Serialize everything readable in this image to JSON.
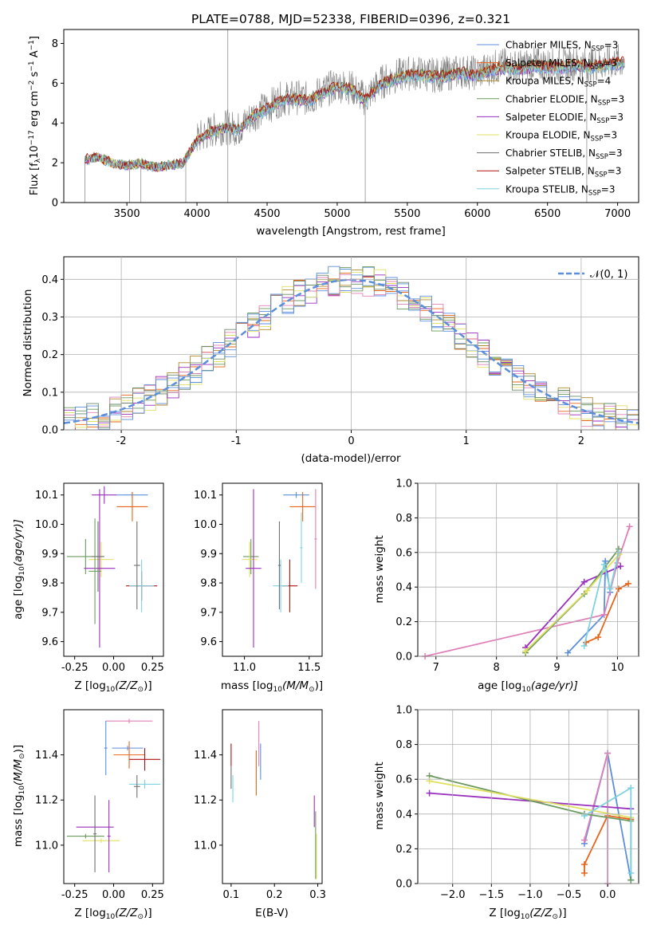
{
  "figure": {
    "title": "PLATE=0788, MJD=52338, FIBERID=0396, z=0.321"
  },
  "palette": {
    "series_colors": [
      "#5b8fdc",
      "#e8641a",
      "#b08a2e",
      "#6c9a5e",
      "#9a2fbe",
      "#e0e060",
      "#707070",
      "#b01010",
      "#7fd3e0"
    ],
    "extra_colors": [
      "#e080b8",
      "#6a8a6a"
    ],
    "normal_curve": "#5b8fdc",
    "spectrum": "#808080",
    "grid": "#b0b0b0"
  },
  "chart_data": [
    {
      "panel": "spectrum",
      "type": "line",
      "title": "PLATE=0788, MJD=52338, FIBERID=0396, z=0.321",
      "xlabel": "wavelength [Angstrom, rest frame]",
      "ylabel": "Flux [f",
      "ylabel_sub": "λ",
      "ylabel_rest": "10",
      "ylabel_exp1": "−17",
      "ylabel_mid": " erg cm",
      "ylabel_exp2": "−2",
      "ylabel_mid2": " s",
      "ylabel_exp3": "−1",
      "ylabel_mid3": " A",
      "ylabel_exp4": "−1",
      "ylabel_end": "]",
      "xlim": [
        3050,
        7150
      ],
      "ylim": [
        0,
        8.7
      ],
      "xticks": [
        3500,
        4000,
        4500,
        5000,
        5500,
        6000,
        6500,
        7000
      ],
      "yticks": [
        0,
        2,
        4,
        6,
        8
      ],
      "grid": false,
      "legend_position": "top-right",
      "legend": [
        {
          "name": "Chabrier MILES, N",
          "sub": "SSP",
          "suffix": "=3"
        },
        {
          "name": "Salpeter MILES, N",
          "sub": "SSP",
          "suffix": "=3"
        },
        {
          "name": "Kroupa MILES, N",
          "sub": "SSP",
          "suffix": "=4"
        },
        {
          "name": "Chabrier ELODIE, N",
          "sub": "SSP",
          "suffix": "=3"
        },
        {
          "name": "Salpeter ELODIE, N",
          "sub": "SSP",
          "suffix": "=3"
        },
        {
          "name": "Kroupa ELODIE, N",
          "sub": "SSP",
          "suffix": "=3"
        },
        {
          "name": "Chabrier STELIB, N",
          "sub": "SSP",
          "suffix": "=3"
        },
        {
          "name": "Salpeter STELIB, N",
          "sub": "SSP",
          "suffix": "=3"
        },
        {
          "name": "Kroupa STELIB, N",
          "sub": "SSP",
          "suffix": "=3"
        }
      ],
      "continuum": {
        "x": [
          3200,
          3300,
          3400,
          3500,
          3600,
          3700,
          3800,
          3900,
          3950,
          4000,
          4100,
          4200,
          4300,
          4400,
          4500,
          4600,
          4700,
          4800,
          4900,
          5000,
          5100,
          5200,
          5300,
          5400,
          5500,
          5600,
          5700,
          5800,
          5900,
          6000,
          6100,
          6200,
          6300,
          6400,
          6500,
          6600,
          6700,
          6800,
          6900,
          7000,
          7050
        ],
        "y": [
          2.2,
          2.3,
          2.0,
          1.9,
          2.0,
          1.8,
          1.9,
          2.0,
          2.6,
          3.2,
          3.6,
          3.8,
          3.7,
          4.4,
          4.8,
          5.2,
          5.3,
          5.2,
          5.6,
          5.9,
          5.8,
          5.2,
          6.0,
          6.3,
          6.5,
          6.5,
          6.4,
          6.5,
          6.6,
          6.5,
          6.8,
          6.9,
          6.8,
          7.0,
          6.9,
          6.9,
          7.0,
          6.9,
          7.0,
          7.1,
          7.1
        ]
      },
      "data_start": 3200,
      "data_end": 7050
    },
    {
      "panel": "residuals",
      "type": "line",
      "xlabel": "(data-model)/error",
      "ylabel": "Normed distribution",
      "xlim": [
        -2.5,
        2.5
      ],
      "ylim": [
        0,
        0.46
      ],
      "xticks": [
        -2,
        -1,
        0,
        1,
        2
      ],
      "yticks": [
        0.0,
        0.1,
        0.2,
        0.3,
        0.4
      ],
      "grid": true,
      "legend_position": "top-right",
      "legend": [
        "𝒩(0, 1)"
      ],
      "normal": {
        "mean": 0,
        "sigma": 1
      },
      "hist_bin_width": 0.1,
      "hist_start": -2.5
    },
    {
      "panel": "age_vs_Z",
      "type": "scatter",
      "xlabel": "Z [log",
      "xlabel_sub": "10",
      "xlabel_rest": "(Z/Z",
      "xlabel_sub2": "⊙",
      "xlabel_end": ")]",
      "ylabel": "age  [log",
      "ylabel_sub": "10",
      "ylabel_rest": "(age/yr)]",
      "xlim": [
        -0.32,
        0.32
      ],
      "ylim": [
        9.55,
        10.14
      ],
      "xticks": [
        "-0.25",
        "0.00",
        "0.25"
      ],
      "xtickvals": [
        -0.25,
        0.0,
        0.25
      ],
      "yticks": [
        9.6,
        9.7,
        9.8,
        9.9,
        10.0,
        10.1
      ],
      "points": [
        {
          "x": 0.12,
          "y": 10.1,
          "xerr": 0.1,
          "yerr": 0.01,
          "c": 0
        },
        {
          "x": 0.12,
          "y": 10.06,
          "xerr": 0.1,
          "yerr": 0.05,
          "c": 1
        },
        {
          "x": -0.06,
          "y": 10.1,
          "xerr": 0.08,
          "yerr": 0.03,
          "c": 4
        },
        {
          "x": -0.18,
          "y": 9.89,
          "xerr": 0.12,
          "yerr": 0.06,
          "c": 3
        },
        {
          "x": -0.08,
          "y": 9.88,
          "xerr": 0.08,
          "yerr": 0.06,
          "c": 5
        },
        {
          "x": -0.09,
          "y": 9.85,
          "xerr": 0.1,
          "yerr": 0.27,
          "c": 4
        },
        {
          "x": 0.18,
          "y": 9.79,
          "xerr": 0.1,
          "yerr": 0.05,
          "c": 7
        },
        {
          "x": 0.18,
          "y": 9.79,
          "xerr": 0.08,
          "yerr": 0.09,
          "c": 8
        },
        {
          "x": -0.1,
          "y": 9.89,
          "xerr": 0.04,
          "yerr": 0.12,
          "c": 6
        },
        {
          "x": -0.12,
          "y": 9.84,
          "xerr": 0.04,
          "yerr": 0.18,
          "c": 3
        },
        {
          "x": 0.15,
          "y": 9.86,
          "xerr": 0.02,
          "yerr": 0.15,
          "c": 6
        }
      ]
    },
    {
      "panel": "age_vs_mass",
      "type": "scatter",
      "xlabel": "mass [log",
      "xlabel_sub": "10",
      "xlabel_rest": "(M/M",
      "xlabel_sub2": "⊙",
      "xlabel_end": ")]",
      "xlim": [
        10.83,
        11.6
      ],
      "ylim": [
        9.55,
        10.14
      ],
      "xticks": [
        "11.0",
        "11.5"
      ],
      "xtickvals": [
        11.0,
        11.5
      ],
      "yticks": [
        9.6,
        9.7,
        9.8,
        9.9,
        10.0,
        10.1
      ],
      "points": [
        {
          "x": 11.4,
          "y": 10.1,
          "xerr": 0.1,
          "yerr": 0.01,
          "c": 0
        },
        {
          "x": 11.45,
          "y": 10.06,
          "xerr": 0.1,
          "yerr": 0.05,
          "c": 1
        },
        {
          "x": 11.55,
          "y": 9.95,
          "xerr": 0.01,
          "yerr": 0.17,
          "c": 9
        },
        {
          "x": 11.05,
          "y": 9.89,
          "xerr": 0.06,
          "yerr": 0.06,
          "c": 3
        },
        {
          "x": 11.04,
          "y": 9.88,
          "xerr": 0.06,
          "yerr": 0.06,
          "c": 5
        },
        {
          "x": 11.07,
          "y": 9.85,
          "xerr": 0.06,
          "yerr": 0.27,
          "c": 4
        },
        {
          "x": 11.35,
          "y": 9.79,
          "xerr": 0.06,
          "yerr": 0.09,
          "c": 7
        },
        {
          "x": 11.28,
          "y": 9.79,
          "xerr": 0.06,
          "yerr": 0.09,
          "c": 8
        },
        {
          "x": 11.44,
          "y": 9.92,
          "xerr": 0.01,
          "yerr": 0.12,
          "c": 8
        },
        {
          "x": 11.27,
          "y": 9.86,
          "xerr": 0.01,
          "yerr": 0.15,
          "c": 6
        }
      ]
    },
    {
      "panel": "weight_vs_age",
      "type": "line",
      "xlabel": "age  [log",
      "xlabel_sub": "10",
      "xlabel_rest": "(age/yr)]",
      "ylabel": "mass weight",
      "xlim": [
        6.7,
        10.35
      ],
      "ylim": [
        0,
        1.0
      ],
      "xticks": [
        7,
        8,
        9,
        10
      ],
      "yticks": [
        0.0,
        0.2,
        0.4,
        0.6,
        0.8,
        1.0
      ],
      "grid": true,
      "series": [
        {
          "c": 0,
          "x": [
            9.18,
            9.78,
            9.8,
            9.88
          ],
          "y": [
            0.02,
            0.24,
            0.55,
            0.37
          ]
        },
        {
          "c": 1,
          "x": [
            9.48,
            9.68,
            10.02,
            10.18
          ],
          "y": [
            0.08,
            0.11,
            0.39,
            0.42
          ]
        },
        {
          "c": 9,
          "x": [
            6.82,
            9.78,
            10.0,
            10.2
          ],
          "y": [
            0.0,
            0.24,
            0.54,
            0.75
          ]
        },
        {
          "c": 4,
          "x": [
            8.48,
            9.45,
            10.05
          ],
          "y": [
            0.05,
            0.43,
            0.52
          ]
        },
        {
          "c": 3,
          "x": [
            8.48,
            9.45,
            10.02
          ],
          "y": [
            0.02,
            0.36,
            0.62
          ]
        },
        {
          "c": 5,
          "x": [
            8.48,
            9.5,
            10.03
          ],
          "y": [
            0.03,
            0.38,
            0.59
          ]
        },
        {
          "c": 8,
          "x": [
            9.45,
            9.78,
            9.88,
            10.02
          ],
          "y": [
            0.06,
            0.53,
            0.39,
            0.6
          ]
        }
      ]
    },
    {
      "panel": "mass_vs_Z",
      "type": "scatter",
      "xlabel": "Z [log",
      "xlabel_sub": "10",
      "xlabel_rest": "(Z/Z",
      "xlabel_sub2": "⊙",
      "xlabel_end": ")]",
      "ylabel": "mass [log",
      "ylabel_sub": "10",
      "ylabel_rest": "(M/M",
      "ylabel_sub2": "⊙",
      "ylabel_end": ")]",
      "xlim": [
        -0.32,
        0.32
      ],
      "ylim": [
        10.83,
        11.6
      ],
      "xticks": [
        "-0.25",
        "0.00",
        "0.25"
      ],
      "xtickvals": [
        -0.25,
        0.0,
        0.25
      ],
      "yticks": [
        "11.0",
        "11.2",
        "11.4"
      ],
      "ytickvals": [
        11.0,
        11.2,
        11.4
      ],
      "points": [
        {
          "x": 0.1,
          "y": 11.55,
          "xerr": 0.15,
          "yerr": 0.01,
          "c": 9
        },
        {
          "x": 0.09,
          "y": 11.43,
          "xerr": 0.1,
          "yerr": 0.01,
          "c": 0
        },
        {
          "x": 0.1,
          "y": 11.4,
          "xerr": 0.1,
          "yerr": 0.06,
          "c": 1
        },
        {
          "x": -0.05,
          "y": 11.43,
          "xerr": 0.01,
          "yerr": 0.12,
          "c": 0
        },
        {
          "x": 0.2,
          "y": 11.38,
          "xerr": 0.1,
          "yerr": 0.05,
          "c": 7
        },
        {
          "x": 0.2,
          "y": 11.27,
          "xerr": 0.1,
          "yerr": 0.02,
          "c": 8
        },
        {
          "x": 0.15,
          "y": 11.26,
          "xerr": 0.02,
          "yerr": 0.05,
          "c": 6
        },
        {
          "x": -0.12,
          "y": 11.08,
          "xerr": 0.12,
          "yerr": 0.01,
          "c": 4
        },
        {
          "x": -0.18,
          "y": 11.04,
          "xerr": 0.12,
          "yerr": 0.01,
          "c": 3
        },
        {
          "x": -0.08,
          "y": 11.02,
          "xerr": 0.12,
          "yerr": 0.01,
          "c": 5
        },
        {
          "x": -0.12,
          "y": 11.05,
          "xerr": 0.01,
          "yerr": 0.17,
          "c": 6
        },
        {
          "x": -0.03,
          "y": 11.04,
          "xerr": 0.01,
          "yerr": 0.16,
          "c": 4
        }
      ]
    },
    {
      "panel": "mass_vs_ebv",
      "type": "scatter",
      "xlabel": "E(B-V)",
      "xlim": [
        0.08,
        0.31
      ],
      "ylim": [
        10.83,
        11.6
      ],
      "xticks": [
        "0.1",
        "0.2",
        "0.3"
      ],
      "xtickvals": [
        0.1,
        0.2,
        0.3
      ],
      "yticks": [
        "11.0",
        "11.2",
        "11.4"
      ],
      "ytickvals": [
        11.0,
        11.2,
        11.4
      ],
      "points": [
        {
          "x": 0.1,
          "y": 11.4,
          "xerr": 0.0,
          "yerr": 0.05,
          "c": 7
        },
        {
          "x": 0.1,
          "y": 11.3,
          "xerr": 0.0,
          "yerr": 0.05,
          "c": 6
        },
        {
          "x": 0.104,
          "y": 11.25,
          "xerr": 0.0,
          "yerr": 0.06,
          "c": 8
        },
        {
          "x": 0.158,
          "y": 11.32,
          "xerr": 0.0,
          "yerr": 0.1,
          "c": 1
        },
        {
          "x": 0.164,
          "y": 11.45,
          "xerr": 0.0,
          "yerr": 0.1,
          "c": 9
        },
        {
          "x": 0.168,
          "y": 11.37,
          "xerr": 0.0,
          "yerr": 0.08,
          "c": 0
        },
        {
          "x": 0.292,
          "y": 11.15,
          "xerr": 0.0,
          "yerr": 0.07,
          "c": 4
        },
        {
          "x": 0.295,
          "y": 11.0,
          "xerr": 0.0,
          "yerr": 0.15,
          "c": 3
        },
        {
          "x": 0.297,
          "y": 10.95,
          "xerr": 0.0,
          "yerr": 0.1,
          "c": 5
        }
      ]
    },
    {
      "panel": "weight_vs_Z",
      "type": "line",
      "xlabel": "Z [log",
      "xlabel_sub": "10",
      "xlabel_rest": "(Z/Z",
      "xlabel_sub2": "⊙",
      "xlabel_end": ")]",
      "ylabel": "mass weight",
      "xlim": [
        -2.45,
        0.4
      ],
      "ylim": [
        0,
        1.0
      ],
      "xticks": [
        "−2.0",
        "−1.5",
        "−1.0",
        "−0.5",
        "0.0"
      ],
      "xtickvals": [
        -2.0,
        -1.5,
        -1.0,
        -0.5,
        0.0
      ],
      "yticks": [
        0.0,
        0.2,
        0.4,
        0.6,
        0.8,
        1.0
      ],
      "grid": true,
      "series": [
        {
          "c": 0,
          "x": [
            -0.3,
            0.0,
            0.3
          ],
          "y": [
            0.23,
            0.75,
            0.02
          ]
        },
        {
          "c": 1,
          "x": [
            -0.3,
            -0.3,
            0.0,
            0.3
          ],
          "y": [
            0.06,
            0.11,
            0.39,
            0.37
          ]
        },
        {
          "c": 9,
          "x": [
            -0.3,
            0.0,
            0.0
          ],
          "y": [
            0.25,
            0.75,
            0.0
          ]
        },
        {
          "c": 4,
          "x": [
            -2.3,
            0.3
          ],
          "y": [
            0.52,
            0.43
          ]
        },
        {
          "c": 3,
          "x": [
            -2.3,
            -0.3,
            0.3,
            0.3
          ],
          "y": [
            0.62,
            0.4,
            0.36,
            0.02
          ]
        },
        {
          "c": 5,
          "x": [
            -2.3,
            0.3
          ],
          "y": [
            0.59,
            0.38
          ]
        },
        {
          "c": 8,
          "x": [
            -0.3,
            0.3,
            0.3
          ],
          "y": [
            0.39,
            0.55,
            0.06
          ]
        }
      ]
    }
  ]
}
